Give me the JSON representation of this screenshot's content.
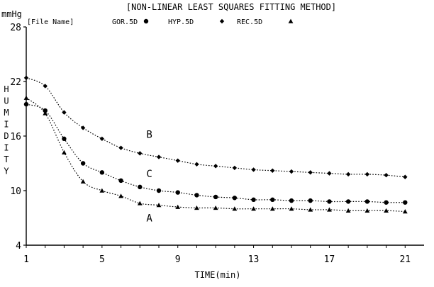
{
  "chart_data": {
    "type": "scatter",
    "title": "[NON-LINEAR LEAST SQUARES FITTING METHOD]",
    "legend_prefix": "[File Name]",
    "legend": [
      {
        "label": "GOR.5D",
        "marker": "circle"
      },
      {
        "label": "HYP.5D",
        "marker": "diamond"
      },
      {
        "label": "REC.5D",
        "marker": "triangle"
      }
    ],
    "legend_placement": "top",
    "unit_label": "mmHg",
    "ylabel": "HUMIDITY",
    "xlabel": "TIME(min)",
    "xlim": [
      1,
      22
    ],
    "ylim": [
      4,
      28
    ],
    "x_ticks": [
      1,
      5,
      9,
      13,
      17,
      21
    ],
    "y_ticks": [
      4,
      10,
      16,
      22,
      28
    ],
    "grid": false,
    "series": [
      {
        "name": "GOR.5D",
        "marker": "circle",
        "curve_label": "C",
        "x": [
          1,
          2,
          3,
          4,
          5,
          6,
          7,
          8,
          9,
          10,
          11,
          12,
          13,
          14,
          15,
          16,
          17,
          18,
          19,
          20,
          21
        ],
        "y": [
          19.5,
          18.8,
          15.7,
          13,
          12,
          11.1,
          10.4,
          10,
          9.8,
          9.5,
          9.3,
          9.2,
          9,
          9,
          8.9,
          8.9,
          8.8,
          8.8,
          8.8,
          8.7,
          8.7
        ]
      },
      {
        "name": "HYP.5D",
        "marker": "diamond",
        "curve_label": "B",
        "x": [
          1,
          2,
          3,
          4,
          5,
          6,
          7,
          8,
          9,
          10,
          11,
          12,
          13,
          14,
          15,
          16,
          17,
          18,
          19,
          20,
          21
        ],
        "y": [
          22.4,
          21.5,
          18.6,
          16.9,
          15.7,
          14.7,
          14.1,
          13.7,
          13.3,
          12.9,
          12.7,
          12.5,
          12.3,
          12.2,
          12.1,
          12,
          11.9,
          11.8,
          11.8,
          11.7,
          11.5
        ]
      },
      {
        "name": "REC.5D",
        "marker": "triangle",
        "curve_label": "A",
        "x": [
          1,
          2,
          3,
          4,
          5,
          6,
          7,
          8,
          9,
          10,
          11,
          12,
          13,
          14,
          15,
          16,
          17,
          18,
          19,
          20,
          21
        ],
        "y": [
          20.2,
          18.5,
          14.2,
          11,
          10,
          9.4,
          8.6,
          8.4,
          8.2,
          8.1,
          8.1,
          8,
          8,
          8,
          8,
          7.9,
          7.9,
          7.8,
          7.8,
          7.8,
          7.7
        ]
      }
    ],
    "curve_labels": [
      {
        "text": "B",
        "x": 7.5,
        "y": 15.8
      },
      {
        "text": "C",
        "x": 7.5,
        "y": 11.5
      },
      {
        "text": "A",
        "x": 7.5,
        "y": 6.6
      }
    ]
  }
}
